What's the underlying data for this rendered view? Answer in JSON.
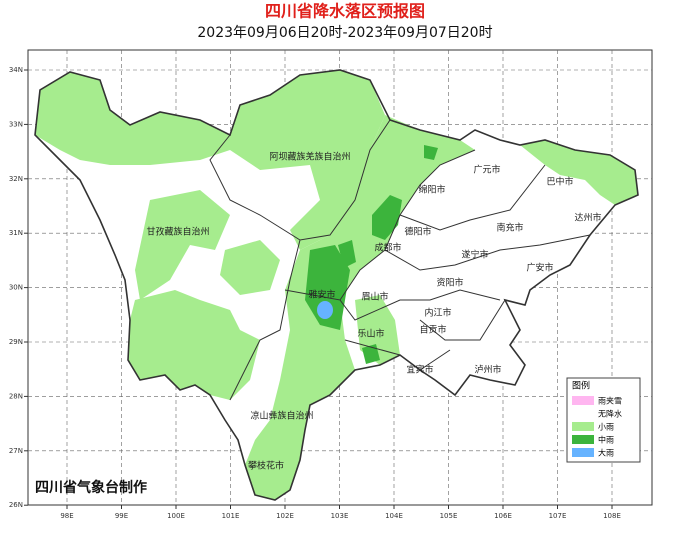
{
  "header": {
    "title": "四川省降水落区预报图",
    "subtitle": "2023年09月06日20时-2023年09月07日20时"
  },
  "map": {
    "lat_labels": [
      "34N",
      "33N",
      "32N",
      "31N",
      "30N",
      "29N",
      "28N",
      "27N",
      "26N"
    ],
    "lon_labels": [
      "98E",
      "99E",
      "100E",
      "101E",
      "102E",
      "103E",
      "104E",
      "105E",
      "106E",
      "107E",
      "108E"
    ],
    "regions": [
      "阿坝藏族羌族自治州",
      "广元市",
      "巴中市",
      "绵阳市",
      "达州市",
      "甘孜藏族自治州",
      "德阳市",
      "南充市",
      "成都市",
      "遂宁市",
      "广安市",
      "资阳市",
      "雅安市",
      "眉山市",
      "内江市",
      "乐山市",
      "自贡市",
      "泸州市",
      "宜宾市",
      "凉山彝族自治州",
      "攀枝花市"
    ]
  },
  "legend": {
    "title": "图例",
    "items": [
      "雨夹雪",
      "无降水",
      "小雨",
      "中雨",
      "大雨"
    ]
  },
  "footer": {
    "credit": "四川省气象台制作"
  }
}
